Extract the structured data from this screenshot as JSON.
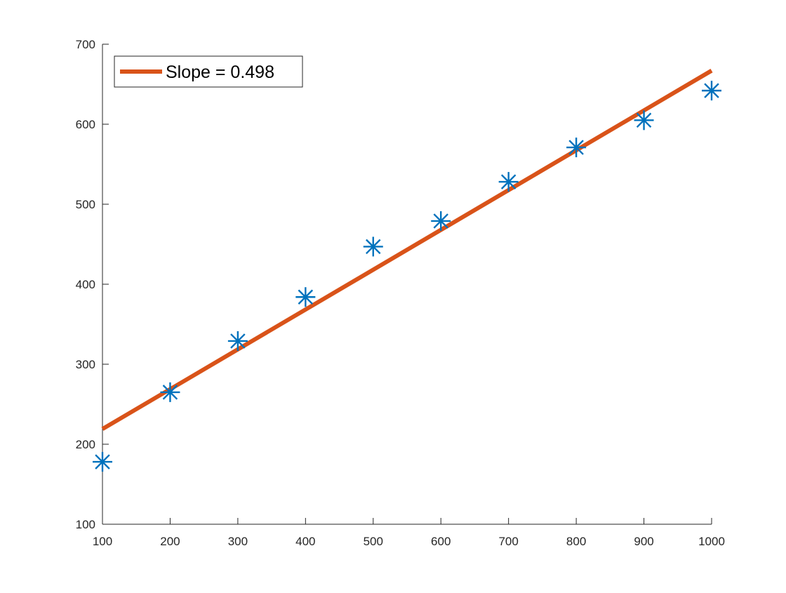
{
  "chart_data": {
    "type": "scatter",
    "title": "",
    "xlabel": "",
    "ylabel": "",
    "xlim": [
      100,
      1000
    ],
    "ylim": [
      100,
      700
    ],
    "x_ticks": [
      100,
      200,
      300,
      400,
      500,
      600,
      700,
      800,
      900,
      1000
    ],
    "y_ticks": [
      100,
      200,
      300,
      400,
      500,
      600,
      700
    ],
    "x_tick_labels": [
      "100",
      "200",
      "300",
      "400",
      "500",
      "600",
      "700",
      "800",
      "900",
      "1000"
    ],
    "y_tick_labels": [
      "100",
      "200",
      "300",
      "400",
      "500",
      "600",
      "700"
    ],
    "grid": false,
    "legend_position": "top-left",
    "series": [
      {
        "kind": "scatter",
        "marker": "asterisk",
        "color": "#0072BD",
        "x": [
          100,
          200,
          300,
          400,
          500,
          600,
          700,
          800,
          900,
          1000
        ],
        "y": [
          178,
          265,
          329,
          384,
          447,
          479,
          528,
          571,
          605,
          642
        ]
      },
      {
        "kind": "line",
        "name": "Slope = 0.498",
        "color": "#D95319",
        "x": [
          100,
          1000
        ],
        "y": [
          219,
          667
        ]
      }
    ],
    "legend": {
      "entries": [
        "Slope = 0.498"
      ]
    }
  }
}
